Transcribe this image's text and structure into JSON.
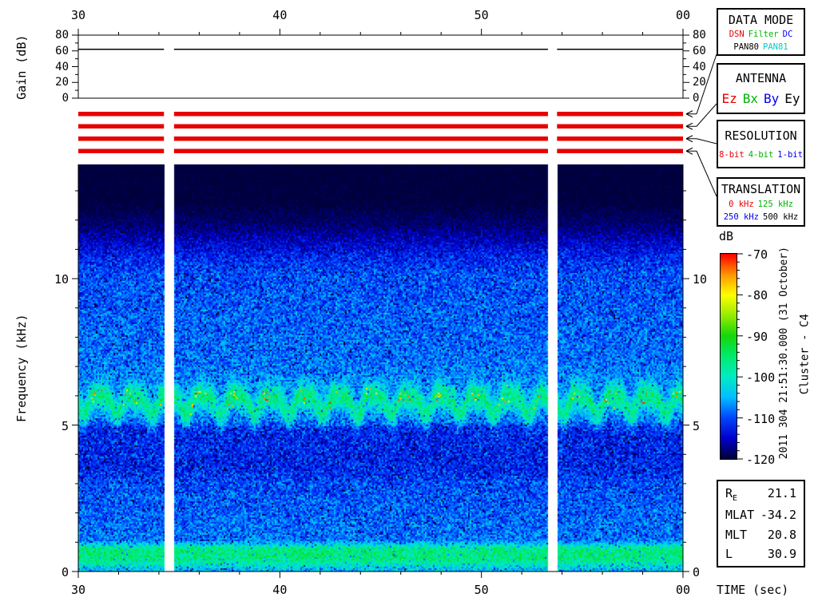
{
  "annotations": {
    "datetime": "2011 304 21:51:30.000 (31 October)",
    "spacecraft": "Cluster - C4"
  },
  "time_axis": {
    "xlabel": "TIME (sec)",
    "start_sec": 30,
    "end_sec": 60,
    "major_ticks": [
      {
        "sec": 30,
        "label": "30"
      },
      {
        "sec": 40,
        "label": "40"
      },
      {
        "sec": 50,
        "label": "50"
      },
      {
        "sec": 60,
        "label": "00"
      }
    ],
    "minor_step_sec": 2
  },
  "data_gaps_sec": [
    [
      34.25,
      34.75
    ],
    [
      53.3,
      53.75
    ]
  ],
  "colorbar": {
    "label": "dB",
    "max_db": -70,
    "min_db": -120,
    "major_tick_step": 10,
    "minor_tick_step": 2,
    "tick_labels": [
      "-70",
      "-80",
      "-90",
      "-100",
      "-110",
      "-120"
    ]
  },
  "chart_data": [
    {
      "type": "line",
      "name": "receiver-gain",
      "ylabel": "Gain (dB)",
      "ylim": [
        0,
        80
      ],
      "ytick_labels": [
        "0",
        "20",
        "40",
        "60",
        "80"
      ],
      "ytick_step": 20,
      "yminor_step": 10,
      "series": [
        {
          "name": "gain",
          "value_db": 62,
          "segments_sec": [
            [
              30,
              34.25
            ],
            [
              34.75,
              53.3
            ],
            [
              53.75,
              60
            ]
          ]
        }
      ]
    },
    {
      "type": "heatmap",
      "name": "wbd-spectrogram",
      "ylabel": "Frequency (kHz)",
      "ylim_khz": [
        0,
        13.9
      ],
      "ytick_major_khz": [
        0,
        5,
        10
      ],
      "ytick_labels": [
        "0",
        "5",
        "10"
      ],
      "yminor_step_khz": 1,
      "color_scale_db": [
        -120,
        -70
      ],
      "background_profile_khz_db_sigma": [
        [
          0,
          -106,
          5
        ],
        [
          0.18,
          -102,
          5
        ],
        [
          0.3,
          -99,
          4
        ],
        [
          0.45,
          -96,
          4
        ],
        [
          0.8,
          -96,
          4
        ],
        [
          0.95,
          -103,
          4
        ],
        [
          1.1,
          -108,
          4
        ],
        [
          3.0,
          -110,
          4
        ],
        [
          3.5,
          -112,
          4
        ],
        [
          4.9,
          -112,
          4
        ],
        [
          5.2,
          -108,
          4
        ],
        [
          6.4,
          -107,
          4
        ],
        [
          7.0,
          -108,
          4
        ],
        [
          10.2,
          -110,
          4
        ],
        [
          10.9,
          -113,
          3.5
        ],
        [
          11.8,
          -118,
          2
        ],
        [
          12.6,
          -120,
          1
        ],
        [
          13.9,
          -120,
          0.7
        ]
      ],
      "chorus_band": {
        "center_khz": 5.8,
        "wave_amplitude_khz": 0.3,
        "wave_period_sec": 1.7,
        "half_width_khz": 0.5,
        "peak_boost_db": 11,
        "hotspot_max_db": -71,
        "hotspot_probability": 0.14
      },
      "status_bars": {
        "rows": 4,
        "color": "#e60000"
      }
    }
  ],
  "side_panels": [
    {
      "title": "DATA MODE",
      "rows": [
        [
          {
            "text": "DSN",
            "color": "red"
          },
          {
            "text": "Filter",
            "color": "green"
          },
          {
            "text": "DC",
            "color": "blue"
          }
        ],
        [
          {
            "text": "PAN80",
            "color": "black"
          },
          {
            "text": "PAN81",
            "color": "cyan"
          }
        ]
      ]
    },
    {
      "title": "ANTENNA",
      "large": true,
      "rows": [
        [
          {
            "text": "Ez",
            "color": "red"
          },
          {
            "text": "Bx",
            "color": "green"
          },
          {
            "text": "By",
            "color": "blue"
          },
          {
            "text": "Ey",
            "color": "black"
          }
        ]
      ]
    },
    {
      "title": "RESOLUTION",
      "rows": [
        [
          {
            "text": "8-bit",
            "color": "red"
          },
          {
            "text": "4-bit",
            "color": "green"
          },
          {
            "text": "1-bit",
            "color": "blue"
          }
        ]
      ]
    },
    {
      "title": "TRANSLATION",
      "rows": [
        [
          {
            "text": "0 kHz",
            "color": "red"
          },
          {
            "text": "125 kHz",
            "color": "green"
          }
        ],
        [
          {
            "text": "250 kHz",
            "color": "blue"
          },
          {
            "text": "500 kHz",
            "color": "black"
          }
        ]
      ]
    }
  ],
  "info_panel": {
    "rows": [
      {
        "label": "R",
        "sub": "E",
        "value": "21.1"
      },
      {
        "label": "MLAT",
        "sub": "",
        "value": "-34.2"
      },
      {
        "label": "MLT",
        "sub": "",
        "value": "20.8"
      },
      {
        "label": "L",
        "sub": "",
        "value": "30.9"
      }
    ]
  },
  "palette": {
    "red": "#e60000",
    "green": "#00b400",
    "blue": "#0000ee",
    "cyan": "#00cccc",
    "black": "#000000",
    "bar_red": "#e60000"
  }
}
